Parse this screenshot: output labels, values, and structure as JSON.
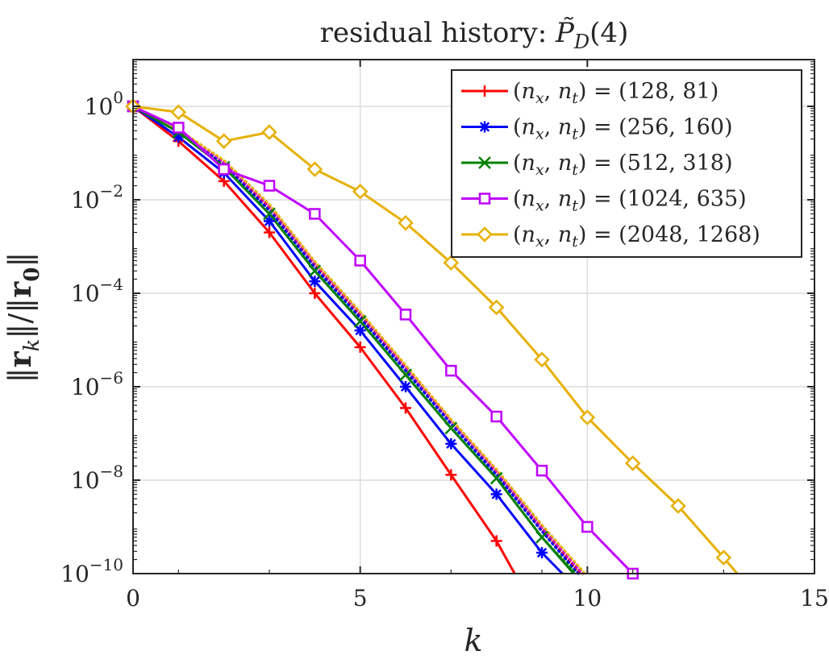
{
  "chart_data": {
    "type": "line",
    "title": "residual history: P̃_D(4)",
    "xlabel": "k",
    "ylabel": "||r_k|| / ||r_0||",
    "xlim": [
      0,
      15
    ],
    "ylim": [
      1e-10,
      10
    ],
    "yscale": "log",
    "grid": true,
    "legend_position": "top-right",
    "x_ticks": [
      {
        "value": 0,
        "label": "0"
      },
      {
        "value": 5,
        "label": "5"
      },
      {
        "value": 10,
        "label": "10"
      },
      {
        "value": 15,
        "label": "15"
      }
    ],
    "y_ticks": [
      {
        "exp": 0,
        "base": "10",
        "sup": "0"
      },
      {
        "exp": -2,
        "base": "10",
        "sup": "−2"
      },
      {
        "exp": -4,
        "base": "10",
        "sup": "−4"
      },
      {
        "exp": -6,
        "base": "10",
        "sup": "−6"
      },
      {
        "exp": -8,
        "base": "10",
        "sup": "−8"
      },
      {
        "exp": -10,
        "base": "10",
        "sup": "−10"
      }
    ],
    "series": [
      {
        "name": "(n_x, n_t) = (128, 81)",
        "color": "#ff0000",
        "marker": "plus",
        "style": "solid",
        "x": [
          0,
          1,
          2,
          3,
          4,
          5,
          6,
          7,
          8,
          8.4
        ],
        "y": [
          1,
          0.18,
          0.025,
          0.002,
          0.0001,
          7e-06,
          3.5e-07,
          1.3e-08,
          5e-10,
          1e-10
        ]
      },
      {
        "name": "(n_x, n_t) = (256, 160)",
        "color": "#0000ff",
        "marker": "asterisk",
        "style": "solid",
        "x": [
          0,
          1,
          2,
          3,
          4,
          5,
          6,
          7,
          8,
          9,
          9.45
        ],
        "y": [
          1,
          0.22,
          0.038,
          0.0035,
          0.00018,
          1.6e-05,
          1e-06,
          6e-08,
          5e-09,
          2.8e-10,
          1e-10
        ]
      },
      {
        "name": "(n_x, n_t) = (512, 318)",
        "color": "#008000",
        "marker": "cross",
        "style": "solid",
        "x": [
          0,
          1,
          2,
          3,
          4,
          5,
          6,
          7,
          8,
          9,
          9.7
        ],
        "y": [
          1,
          0.28,
          0.05,
          0.005,
          0.0003,
          2.5e-05,
          1.8e-06,
          1.3e-07,
          1.1e-08,
          6e-10,
          1e-10
        ]
      },
      {
        "name": "(n_x, n_t) = (1024, 635)",
        "color": "#bf00ff",
        "marker": "square",
        "style": "solid",
        "x": [
          0,
          1,
          2,
          3,
          4,
          5,
          6,
          7,
          8,
          9,
          10,
          11
        ],
        "y": [
          1,
          0.35,
          0.045,
          0.02,
          0.005,
          0.0005,
          3.5e-05,
          2.2e-06,
          2.3e-07,
          1.6e-08,
          1e-09,
          1e-10
        ]
      },
      {
        "name": "(n_x, n_t) = (2048, 1268)",
        "color": "#e6b000",
        "marker": "diamond",
        "style": "solid",
        "x": [
          0,
          1,
          2,
          3,
          4,
          5,
          6,
          7,
          8,
          9,
          10,
          11,
          12,
          13,
          13.3
        ],
        "y": [
          1,
          0.75,
          0.18,
          0.28,
          0.045,
          0.015,
          0.0032,
          0.00045,
          5e-05,
          3.8e-06,
          2.2e-07,
          2.3e-08,
          2.8e-09,
          2.2e-10,
          1e-10
        ]
      }
    ],
    "dotted_reference": [
      {
        "color": "#ff0000",
        "x": [
          0,
          1,
          2,
          3,
          4,
          5,
          6,
          7,
          8,
          9,
          9.85
        ],
        "y": [
          1,
          0.3,
          0.06,
          0.007,
          0.00042,
          3.5e-05,
          2.5e-06,
          1.8e-07,
          1.5e-08,
          9e-10,
          1e-10
        ]
      },
      {
        "color": "#0000ff",
        "x": [
          0,
          1,
          2,
          3,
          4,
          5,
          6,
          7,
          8,
          9,
          9.8
        ],
        "y": [
          1,
          0.29,
          0.055,
          0.006,
          0.00036,
          3e-05,
          2.2e-06,
          1.6e-07,
          1.3e-08,
          8e-10,
          1e-10
        ]
      },
      {
        "color": "#008000",
        "x": [
          0,
          1,
          2,
          3,
          4,
          5,
          6,
          7,
          8,
          9,
          9.75
        ],
        "y": [
          1,
          0.28,
          0.05,
          0.005,
          0.0003,
          2.5e-05,
          1.8e-06,
          1.3e-07,
          1.1e-08,
          6e-10,
          1e-10
        ]
      },
      {
        "color": "#bf00ff",
        "x": [
          0,
          1,
          2,
          3,
          4,
          5,
          6,
          7,
          8,
          9,
          9.9
        ],
        "y": [
          1,
          0.31,
          0.065,
          0.0075,
          0.00045,
          3.8e-05,
          2.7e-06,
          1.9e-07,
          1.6e-08,
          1e-09,
          1e-10
        ]
      },
      {
        "color": "#e6b000",
        "x": [
          0,
          1,
          2,
          3,
          4,
          5,
          6,
          7,
          8,
          9,
          9.95
        ],
        "y": [
          1,
          0.32,
          0.07,
          0.008,
          0.00048,
          4e-05,
          2.9e-06,
          2e-07,
          1.7e-08,
          1.1e-09,
          1e-10
        ]
      }
    ]
  }
}
